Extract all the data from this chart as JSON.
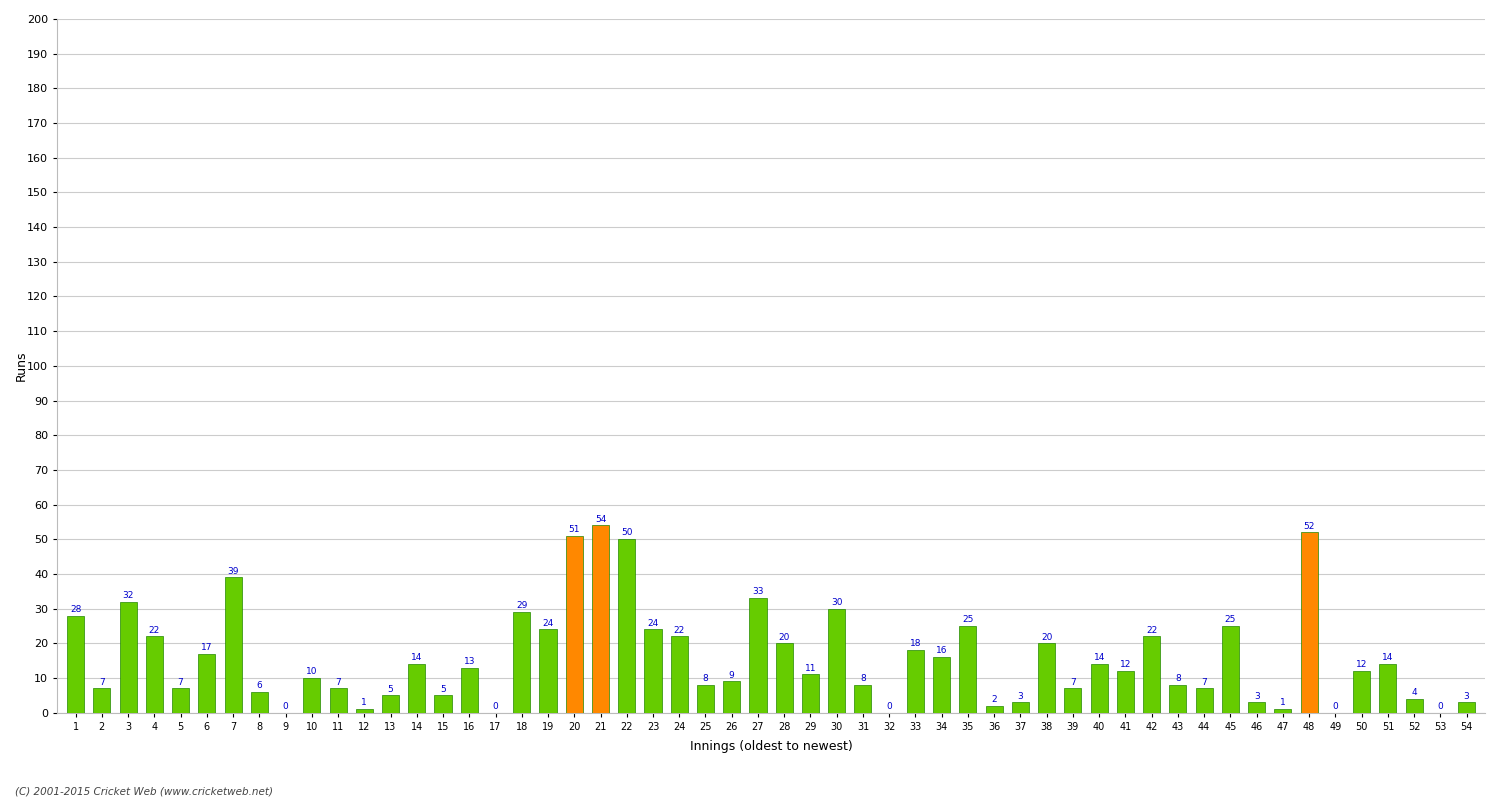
{
  "innings_labels": [
    "1",
    "2",
    "3",
    "4",
    "5",
    "6",
    "7",
    "8",
    "9",
    "10",
    "11",
    "12",
    "13",
    "14",
    "15",
    "16",
    "17",
    "18",
    "19",
    "20",
    "21",
    "22",
    "23",
    "24",
    "25",
    "26",
    "27",
    "28",
    "29",
    "30",
    "31",
    "32",
    "33",
    "34",
    "35",
    "36",
    "37",
    "38",
    "39",
    "40",
    "41",
    "42",
    "43",
    "44",
    "45",
    "46",
    "47",
    "48",
    "49",
    "50",
    "51",
    "52",
    "53",
    "54"
  ],
  "runs": [
    28,
    7,
    32,
    22,
    7,
    17,
    39,
    6,
    0,
    10,
    7,
    1,
    5,
    14,
    5,
    13,
    0,
    29,
    24,
    51,
    54,
    50,
    24,
    22,
    8,
    9,
    33,
    20,
    11,
    30,
    8,
    0,
    18,
    16,
    25,
    2,
    3,
    20,
    7,
    14,
    12,
    22,
    8,
    7,
    25,
    3,
    1,
    52,
    0,
    12,
    14,
    4,
    0,
    3
  ],
  "colors": [
    "#66cc00",
    "#66cc00",
    "#66cc00",
    "#66cc00",
    "#66cc00",
    "#66cc00",
    "#66cc00",
    "#66cc00",
    "#66cc00",
    "#66cc00",
    "#66cc00",
    "#66cc00",
    "#66cc00",
    "#66cc00",
    "#66cc00",
    "#66cc00",
    "#66cc00",
    "#66cc00",
    "#66cc00",
    "#ff8800",
    "#ff8800",
    "#66cc00",
    "#66cc00",
    "#66cc00",
    "#66cc00",
    "#66cc00",
    "#66cc00",
    "#66cc00",
    "#66cc00",
    "#66cc00",
    "#66cc00",
    "#66cc00",
    "#66cc00",
    "#66cc00",
    "#66cc00",
    "#66cc00",
    "#66cc00",
    "#66cc00",
    "#66cc00",
    "#66cc00",
    "#66cc00",
    "#66cc00",
    "#66cc00",
    "#66cc00",
    "#66cc00",
    "#66cc00",
    "#66cc00",
    "#ff8800",
    "#66cc00",
    "#66cc00",
    "#66cc00",
    "#66cc00",
    "#66cc00",
    "#66cc00"
  ],
  "ylabel": "Runs",
  "xlabel": "Innings (oldest to newest)",
  "ylim": [
    0,
    200
  ],
  "yticks": [
    0,
    10,
    20,
    30,
    40,
    50,
    60,
    70,
    80,
    90,
    100,
    110,
    120,
    130,
    140,
    150,
    160,
    170,
    180,
    190,
    200
  ],
  "footer": "(C) 2001-2015 Cricket Web (www.cricketweb.net)",
  "label_color": "#0000cc",
  "bar_green": "#66cc00",
  "bar_orange": "#ff8800",
  "bar_edge_color": "#228800",
  "grid_color": "#cccccc",
  "bg_color": "#ffffff",
  "label_fontsize": 6.5,
  "tick_fontsize": 7,
  "ytick_fontsize": 8,
  "ylabel_fontsize": 9,
  "xlabel_fontsize": 9,
  "bar_width": 0.65
}
